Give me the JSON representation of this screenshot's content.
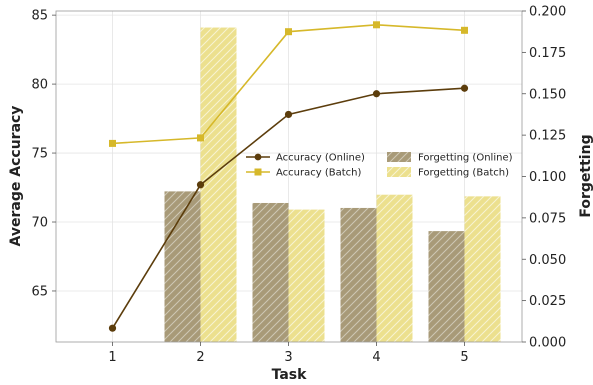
{
  "chart_data": {
    "type": "bar+line",
    "title": "",
    "xlabel": "Task",
    "ylabel_left": "Average Accuracy",
    "ylabel_right": "Forgetting",
    "x": [
      1,
      2,
      3,
      4,
      5
    ],
    "x_tick_labels": [
      "1",
      "2",
      "3",
      "4",
      "5"
    ],
    "ylim_left": [
      61.3,
      85.3
    ],
    "ylim_right": [
      0.0,
      0.2
    ],
    "y_ticks_left": [
      "65",
      "70",
      "75",
      "80",
      "85"
    ],
    "y_ticks_right": [
      "0.000",
      "0.025",
      "0.050",
      "0.075",
      "0.100",
      "0.125",
      "0.150",
      "0.175",
      "0.200"
    ],
    "grid": true,
    "legend_position": "center-right",
    "lines": [
      {
        "name": "Accuracy (Online)",
        "axis": "left",
        "color": "#5c3d0c",
        "marker": "circle",
        "values": [
          62.3,
          72.7,
          77.8,
          79.3,
          79.7
        ]
      },
      {
        "name": "Accuracy (Batch)",
        "axis": "left",
        "color": "#d6b82a",
        "marker": "square",
        "values": [
          75.7,
          76.1,
          83.8,
          84.3,
          83.9
        ]
      }
    ],
    "bars": [
      {
        "name": "Forgetting (Online)",
        "axis": "right",
        "color": "#a89a78",
        "hatch": true,
        "values": [
          null,
          0.091,
          0.084,
          0.081,
          0.067
        ]
      },
      {
        "name": "Forgetting (Batch)",
        "axis": "right",
        "color": "#ece08e",
        "hatch": true,
        "values": [
          null,
          0.19,
          0.08,
          0.089,
          0.088
        ]
      }
    ]
  }
}
